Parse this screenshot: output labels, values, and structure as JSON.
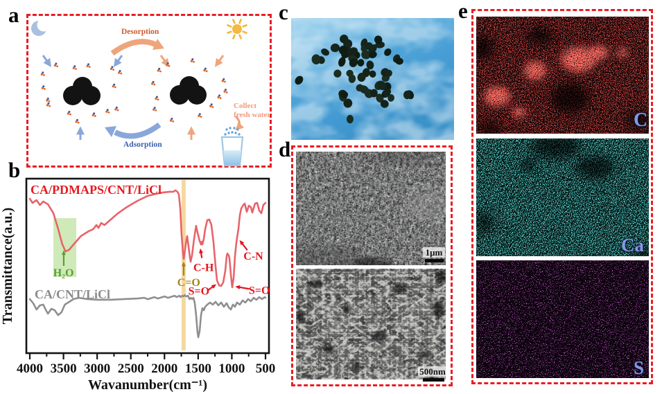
{
  "figure": {
    "background": "#ffffff",
    "accent_border_color": "#ea1c24"
  },
  "panels": {
    "a": {
      "label": "a",
      "desorption_label": "Desorption",
      "adsorption_label": "Adsorption",
      "collect_label": "Collect\nfresh water",
      "colors": {
        "desorption_text": "#cd5b2b",
        "adsorption_text": "#3e5fb0",
        "collect_text": "#f29a7b",
        "arrow_orange": "#efa57c",
        "arrow_blue": "#8aa7da",
        "particle_orange": "#dd6a2c",
        "particle_blue": "#3a55a4",
        "moon": "#a9c0e0",
        "sun": "#f4b942"
      }
    },
    "b": {
      "label": "b"
    },
    "c": {
      "label": "c"
    },
    "d": {
      "label": "d",
      "scalebar_top": "1μm",
      "scalebar_bottom": "500nm"
    },
    "e": {
      "label": "e",
      "maps": [
        {
          "element": "C",
          "speckle_color": "#d01414"
        },
        {
          "element": "Ca",
          "speckle_color": "#17b8ac"
        },
        {
          "element": "S",
          "speckle_color": "#a21ba2"
        }
      ],
      "label_color": "#8598e4"
    }
  },
  "chart_data": {
    "type": "line",
    "xlabel": "Wavanumber(cm⁻¹)",
    "ylabel": "Transmittance(a.u.)",
    "x_ticks": [
      4000,
      3500,
      3000,
      2500,
      2000,
      1500,
      1000,
      500
    ],
    "xlim": [
      4000,
      500
    ],
    "grid": false,
    "series": [
      {
        "name": "CA/PDMAPS/CNT/LiCl",
        "color": "#e8636a",
        "label_color": "#e41b20",
        "points": [
          [
            4000,
            0.885
          ],
          [
            3960,
            0.861
          ],
          [
            3900,
            0.877
          ],
          [
            3850,
            0.849
          ],
          [
            3800,
            0.869
          ],
          [
            3730,
            0.853
          ],
          [
            3650,
            0.802
          ],
          [
            3580,
            0.714
          ],
          [
            3520,
            0.627
          ],
          [
            3470,
            0.583
          ],
          [
            3420,
            0.591
          ],
          [
            3340,
            0.627
          ],
          [
            3240,
            0.671
          ],
          [
            3130,
            0.698
          ],
          [
            3060,
            0.71
          ],
          [
            3010,
            0.734
          ],
          [
            2980,
            0.718
          ],
          [
            2940,
            0.746
          ],
          [
            2890,
            0.734
          ],
          [
            2810,
            0.762
          ],
          [
            2690,
            0.802
          ],
          [
            2560,
            0.837
          ],
          [
            2400,
            0.873
          ],
          [
            2250,
            0.901
          ],
          [
            2120,
            0.913
          ],
          [
            2020,
            0.921
          ],
          [
            1920,
            0.925
          ],
          [
            1869,
            0.925
          ],
          [
            1838,
            0.933
          ],
          [
            1807,
            0.925
          ],
          [
            1787,
            0.909
          ],
          [
            1766,
            0.833
          ],
          [
            1746,
            0.675
          ],
          [
            1725,
            0.575
          ],
          [
            1715,
            0.54
          ],
          [
            1694,
            0.595
          ],
          [
            1674,
            0.651
          ],
          [
            1663,
            0.671
          ],
          [
            1643,
            0.611
          ],
          [
            1622,
            0.548
          ],
          [
            1612,
            0.524
          ],
          [
            1591,
            0.56
          ],
          [
            1560,
            0.655
          ],
          [
            1530,
            0.73
          ],
          [
            1509,
            0.69
          ],
          [
            1478,
            0.643
          ],
          [
            1457,
            0.623
          ],
          [
            1447,
            0.639
          ],
          [
            1437,
            0.623
          ],
          [
            1416,
            0.655
          ],
          [
            1396,
            0.71
          ],
          [
            1365,
            0.762
          ],
          [
            1334,
            0.766
          ],
          [
            1303,
            0.734
          ],
          [
            1272,
            0.635
          ],
          [
            1241,
            0.496
          ],
          [
            1221,
            0.417
          ],
          [
            1190,
            0.389
          ],
          [
            1159,
            0.385
          ],
          [
            1128,
            0.405
          ],
          [
            1097,
            0.472
          ],
          [
            1077,
            0.552
          ],
          [
            1066,
            0.571
          ],
          [
            1046,
            0.56
          ],
          [
            1035,
            0.544
          ],
          [
            1015,
            0.452
          ],
          [
            994,
            0.377
          ],
          [
            973,
            0.433
          ],
          [
            954,
            0.552
          ],
          [
            933,
            0.631
          ],
          [
            923,
            0.659
          ],
          [
            902,
            0.71
          ],
          [
            881,
            0.79
          ],
          [
            860,
            0.829
          ],
          [
            830,
            0.849
          ],
          [
            809,
            0.857
          ],
          [
            778,
            0.81
          ],
          [
            747,
            0.845
          ],
          [
            717,
            0.837
          ],
          [
            696,
            0.806
          ],
          [
            655,
            0.857
          ],
          [
            624,
            0.861
          ],
          [
            593,
            0.817
          ],
          [
            562,
            0.802
          ],
          [
            532,
            0.849
          ],
          [
            500,
            0.861
          ]
        ]
      },
      {
        "name": "CA/CNT/LiCl",
        "color": "#8f8f8f",
        "label_color": "#8b8b8b",
        "points": [
          [
            4000,
            0.31
          ],
          [
            3950,
            0.286
          ],
          [
            3900,
            0.25
          ],
          [
            3850,
            0.274
          ],
          [
            3800,
            0.278
          ],
          [
            3760,
            0.246
          ],
          [
            3730,
            0.226
          ],
          [
            3680,
            0.254
          ],
          [
            3630,
            0.246
          ],
          [
            3580,
            0.218
          ],
          [
            3530,
            0.234
          ],
          [
            3480,
            0.278
          ],
          [
            3430,
            0.29
          ],
          [
            3350,
            0.31
          ],
          [
            3270,
            0.317
          ],
          [
            3150,
            0.31
          ],
          [
            3000,
            0.306
          ],
          [
            2800,
            0.306
          ],
          [
            2600,
            0.31
          ],
          [
            2400,
            0.313
          ],
          [
            2300,
            0.317
          ],
          [
            2250,
            0.309
          ],
          [
            2200,
            0.315
          ],
          [
            2150,
            0.321
          ],
          [
            2100,
            0.313
          ],
          [
            2050,
            0.319
          ],
          [
            2000,
            0.325
          ],
          [
            1950,
            0.317
          ],
          [
            1900,
            0.323
          ],
          [
            1850,
            0.329
          ],
          [
            1820,
            0.321
          ],
          [
            1800,
            0.325
          ],
          [
            1780,
            0.329
          ],
          [
            1760,
            0.321
          ],
          [
            1740,
            0.329
          ],
          [
            1720,
            0.325
          ],
          [
            1700,
            0.333
          ],
          [
            1680,
            0.325
          ],
          [
            1650,
            0.329
          ],
          [
            1630,
            0.31
          ],
          [
            1610,
            0.317
          ],
          [
            1591,
            0.31
          ],
          [
            1570,
            0.317
          ],
          [
            1550,
            0.286
          ],
          [
            1530,
            0.218
          ],
          [
            1509,
            0.119
          ],
          [
            1499,
            0.091
          ],
          [
            1478,
            0.127
          ],
          [
            1457,
            0.218
          ],
          [
            1437,
            0.258
          ],
          [
            1416,
            0.246
          ],
          [
            1396,
            0.266
          ],
          [
            1365,
            0.278
          ],
          [
            1324,
            0.29
          ],
          [
            1282,
            0.278
          ],
          [
            1241,
            0.294
          ],
          [
            1200,
            0.274
          ],
          [
            1159,
            0.29
          ],
          [
            1118,
            0.266
          ],
          [
            1077,
            0.286
          ],
          [
            1046,
            0.262
          ],
          [
            1015,
            0.25
          ],
          [
            984,
            0.278
          ],
          [
            954,
            0.266
          ],
          [
            923,
            0.29
          ],
          [
            881,
            0.278
          ],
          [
            840,
            0.302
          ],
          [
            799,
            0.29
          ],
          [
            758,
            0.31
          ],
          [
            717,
            0.298
          ],
          [
            676,
            0.317
          ],
          [
            635,
            0.306
          ],
          [
            594,
            0.321
          ],
          [
            552,
            0.31
          ],
          [
            511,
            0.321
          ],
          [
            500,
            0.317
          ]
        ]
      }
    ],
    "bands": [
      {
        "name": "H2O-highlight",
        "w1": 3650,
        "w2": 3310,
        "v1": 0.437,
        "v2": 0.774,
        "color": "#bfe3a0",
        "opacity": 0.75
      },
      {
        "name": "CO-highlight",
        "w1": 1746,
        "w2": 1685,
        "v1": 0.016,
        "v2": 0.992,
        "color": "#f3d494",
        "opacity": 0.9
      }
    ],
    "annotations": [
      {
        "text": "H₂O",
        "color": "#5ba033",
        "tx": 3500,
        "tbase_v": 0.44,
        "anchor": "middle",
        "arrow": [
          3496,
          0.5,
          3496,
          0.59
        ]
      },
      {
        "text": "C=O",
        "color": "#a3841c",
        "tx": 1640,
        "tbase_v": 0.385,
        "anchor": "middle",
        "arrow": [
          1715,
          0.445,
          1715,
          0.525
        ]
      },
      {
        "text": "C-H",
        "color": "#e3151d",
        "tx": 1420,
        "tbase_v": 0.47,
        "anchor": "middle",
        "arrow": [
          1445,
          0.545,
          1468,
          0.6
        ]
      },
      {
        "text": "S=O",
        "color": "#e3151d",
        "tx": 1490,
        "tbase_v": 0.335,
        "anchor": "middle",
        "arrow": [
          1350,
          0.362,
          1230,
          0.395
        ]
      },
      {
        "text": "S=O",
        "color": "#e3151d",
        "tx": 590,
        "tbase_v": 0.34,
        "anchor": "middle",
        "arrow": [
          740,
          0.368,
          950,
          0.382
        ]
      },
      {
        "text": "C-N",
        "color": "#e3151d",
        "tx": 680,
        "tbase_v": 0.535,
        "anchor": "middle",
        "arrow": [
          770,
          0.59,
          885,
          0.648
        ]
      }
    ]
  }
}
